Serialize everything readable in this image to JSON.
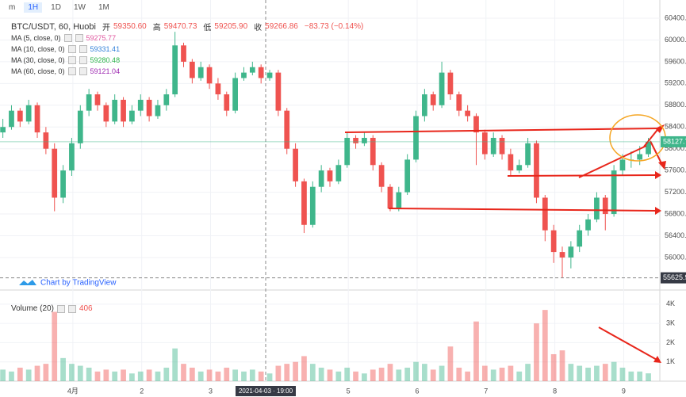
{
  "toolbar": {
    "intervals": [
      "m",
      "1H",
      "1D",
      "1W",
      "1M"
    ]
  },
  "chart_data": {
    "type": "candlestick",
    "title": "BTC/USDT, 60, Huobi",
    "ohlc_legend": [
      {
        "name": "开",
        "value": {
          "value": 59350.6,
          "label": "59350.60"
        }
      },
      {
        "name": "高",
        "value": 59470.73
      },
      {
        "name": "低",
        "value": {
          "value": 59205.9,
          "label": "59205.90"
        }
      },
      {
        "name": "收",
        "value": 59266.86
      }
    ],
    "change": "−83.73 (−0.14%)",
    "indicators": [
      {
        "name": "MA (5, close, 0)",
        "value": 59275.77,
        "color": "#e0559e"
      },
      {
        "name": "MA (10, close, 0)",
        "value": 59331.41,
        "color": "#2f7fd8"
      },
      {
        "name": "MA (30, close, 0)",
        "value": 59280.48,
        "color": "#2bb34a"
      },
      {
        "name": "MA (60, close, 0)",
        "value": 59121.04,
        "color": "#9c27b0"
      }
    ],
    "volume_indicator": {
      "name": "Volume (20)",
      "value": 406
    },
    "last_price": 58127.7,
    "low_marker": 55625.9,
    "crosshair_label": "2021-04-03 · 19:00",
    "watermark": "Chart by TradingView",
    "up_color": "#3fb68b",
    "down_color": "#ef5350",
    "xlim": [
      0,
      230
    ],
    "xticks": [
      {
        "value": 25.4,
        "label": "4月"
      },
      {
        "value": 49.4,
        "label": "2"
      },
      {
        "value": 73.4,
        "label": "3"
      },
      {
        "value": 121.4,
        "label": "5"
      },
      {
        "value": 145.4,
        "label": "6"
      },
      {
        "value": 169.4,
        "label": "7"
      },
      {
        "value": 193.4,
        "label": "8"
      },
      {
        "value": 217.4,
        "label": "9"
      }
    ],
    "ylim": [
      55562,
      60735
    ],
    "yticks": [
      {
        "value": 60400,
        "label": "60400.00"
      },
      {
        "value": 60000,
        "label": "60000.00"
      },
      {
        "value": 59600,
        "label": "59600.00"
      },
      {
        "value": 59200,
        "label": "59200.00"
      },
      {
        "value": 58800,
        "label": "58800.00"
      },
      {
        "value": 58400,
        "label": "58400.00"
      },
      {
        "value": 58000,
        "label": "58000.00"
      },
      {
        "value": 57600,
        "label": "57600.00"
      },
      {
        "value": 57200,
        "label": "57200.00"
      },
      {
        "value": 56800,
        "label": "56800.00"
      },
      {
        "value": 56400,
        "label": "56400.00"
      },
      {
        "value": 56000,
        "label": "56000.00"
      }
    ],
    "volume_ylim": [
      0,
      4240
    ],
    "volume_yticks": [
      {
        "value": 4000,
        "label": "4K"
      },
      {
        "value": 3000,
        "label": "3K"
      },
      {
        "value": 2000,
        "label": "2K"
      },
      {
        "value": 1000,
        "label": "1K"
      }
    ],
    "x": [
      1,
      4,
      7,
      10,
      13,
      16,
      19,
      22,
      25,
      28,
      31,
      34,
      37,
      40,
      43,
      46,
      49,
      52,
      55,
      58,
      61,
      64,
      67,
      70,
      73,
      76,
      79,
      82,
      85,
      88,
      91,
      94,
      97,
      100,
      103,
      106,
      109,
      112,
      115,
      118,
      121,
      124,
      127,
      130,
      133,
      136,
      139,
      142,
      145,
      148,
      151,
      154,
      157,
      160,
      163,
      166,
      169,
      172,
      175,
      178,
      181,
      184,
      187,
      190,
      193,
      196,
      199,
      202,
      205,
      208,
      211,
      214,
      217,
      220,
      223,
      226
    ],
    "open": [
      58300,
      58400,
      58700,
      58500,
      58800,
      58300,
      58000,
      57100,
      57600,
      58100,
      58700,
      59000,
      58800,
      58500,
      58900,
      58500,
      58700,
      58900,
      58600,
      58800,
      59000,
      59900,
      59600,
      59300,
      59500,
      59200,
      59000,
      58700,
      59300,
      59400,
      59500,
      59300,
      59400,
      58700,
      58000,
      57400,
      56600,
      57300,
      57600,
      57400,
      57700,
      58200,
      58100,
      58200,
      57700,
      57300,
      56900,
      57200,
      57800,
      58600,
      59000,
      58800,
      59400,
      59000,
      58700,
      58600,
      58300,
      57900,
      58200,
      57900,
      57600,
      57700,
      58100,
      57100,
      56500,
      56100,
      56000,
      56200,
      56500,
      56700,
      57100,
      56800,
      57600,
      57800,
      57800,
      57900
    ],
    "high": [
      58550,
      58800,
      58750,
      58900,
      58850,
      58400,
      58100,
      57700,
      58200,
      58800,
      59100,
      59050,
      58850,
      59000,
      58950,
      58800,
      59000,
      58950,
      58900,
      59100,
      60150,
      59950,
      59650,
      59600,
      59550,
      59300,
      59050,
      59400,
      59500,
      59600,
      59550,
      59450,
      59450,
      58750,
      58100,
      57450,
      57400,
      57700,
      57650,
      57800,
      58300,
      58250,
      58300,
      58250,
      57750,
      57350,
      57300,
      57900,
      58700,
      59100,
      59050,
      59600,
      59450,
      59050,
      58800,
      58650,
      58350,
      58300,
      58250,
      58000,
      57800,
      58200,
      58150,
      57150,
      56600,
      56200,
      56300,
      56600,
      56800,
      57200,
      57150,
      57700,
      57900,
      57950,
      58050,
      58200
    ],
    "low": [
      58200,
      58350,
      58400,
      58450,
      58200,
      57900,
      56850,
      57000,
      57500,
      58000,
      58600,
      58700,
      58400,
      58450,
      58400,
      58450,
      58600,
      58500,
      58550,
      58700,
      58950,
      59500,
      59200,
      59250,
      59100,
      58900,
      58600,
      58650,
      59250,
      59350,
      59200,
      59250,
      58600,
      57900,
      57300,
      56450,
      56550,
      57200,
      57300,
      57350,
      57650,
      58000,
      58050,
      57600,
      57200,
      56850,
      56850,
      57150,
      57750,
      58500,
      58700,
      58750,
      58900,
      58600,
      58500,
      57700,
      57800,
      57850,
      57800,
      57500,
      57550,
      57650,
      57000,
      56300,
      55900,
      55626,
      55800,
      56100,
      56400,
      56650,
      56500,
      56750,
      57500,
      57650,
      57700,
      57850
    ],
    "close": [
      58400,
      58700,
      58500,
      58800,
      58300,
      58000,
      57100,
      57600,
      58100,
      58700,
      59000,
      58800,
      58500,
      58900,
      58500,
      58700,
      58900,
      58600,
      58800,
      59000,
      59900,
      59600,
      59300,
      59500,
      59200,
      59000,
      58700,
      59300,
      59400,
      59500,
      59300,
      59400,
      58700,
      58000,
      57400,
      56600,
      57300,
      57600,
      57400,
      57700,
      58200,
      58100,
      58200,
      57700,
      57300,
      56900,
      57200,
      57800,
      58600,
      59000,
      58800,
      59400,
      59000,
      58700,
      58600,
      58300,
      57900,
      58200,
      57900,
      57600,
      57700,
      58100,
      57100,
      56500,
      56100,
      56000,
      56200,
      56500,
      56700,
      57100,
      56800,
      57600,
      57800,
      57800,
      57900,
      58127.7
    ],
    "volume": [
      600,
      500,
      700,
      600,
      800,
      900,
      3600,
      1200,
      900,
      800,
      700,
      500,
      600,
      500,
      600,
      400,
      500,
      600,
      500,
      700,
      1700,
      900,
      700,
      500,
      600,
      500,
      700,
      600,
      500,
      600,
      500,
      400,
      800,
      900,
      1000,
      1300,
      900,
      700,
      600,
      500,
      700,
      500,
      400,
      600,
      700,
      900,
      600,
      700,
      1000,
      900,
      600,
      800,
      1800,
      700,
      500,
      3100,
      800,
      600,
      700,
      800,
      500,
      900,
      3000,
      3700,
      1400,
      1600,
      900,
      800,
      700,
      800,
      900,
      1000,
      700,
      500,
      500,
      406
    ]
  }
}
